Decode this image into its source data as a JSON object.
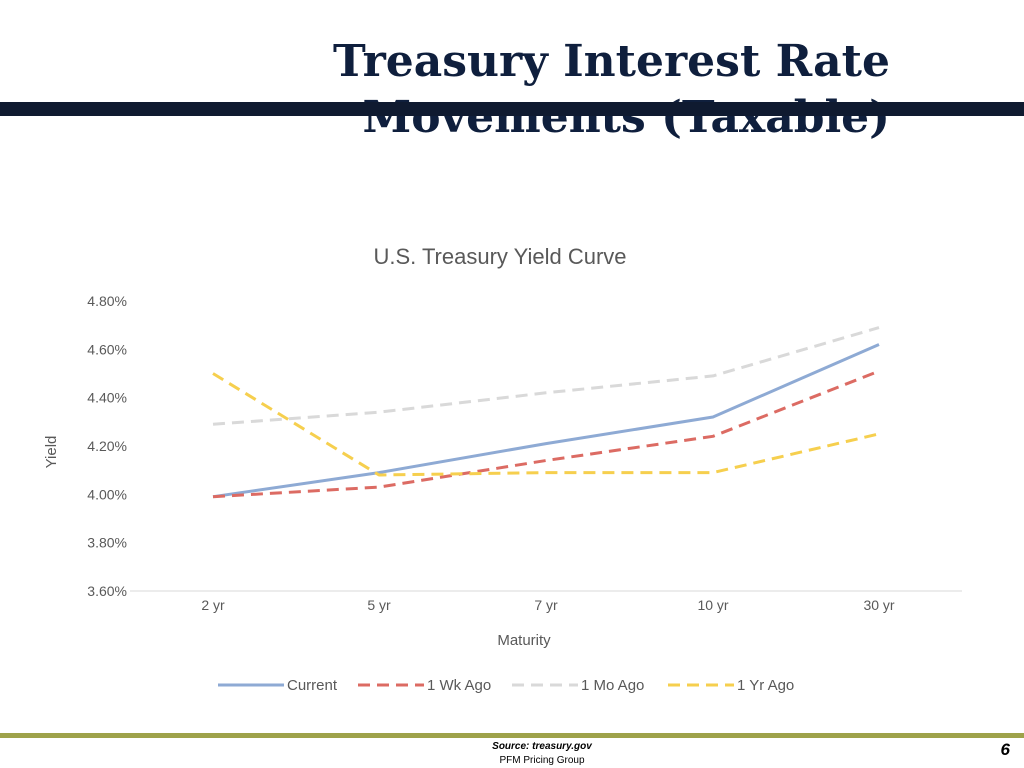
{
  "slide": {
    "title": "Treasury Interest Rate Movements (Taxable)",
    "footer_source": "Source: treasury.gov",
    "footer_org": "PFM Pricing Group",
    "page_number": "6"
  },
  "colors": {
    "title_text": "#0f1f3d",
    "title_bar": "#0f1a30",
    "footer_rule": "#9ea24a",
    "axis_text": "#595959",
    "gridline": "#d9d9d9"
  },
  "chart_data": {
    "type": "line",
    "title": "U.S. Treasury Yield Curve",
    "xlabel": "Maturity",
    "ylabel": "Yield",
    "categories": [
      "2 yr",
      "5 yr",
      "7 yr",
      "10 yr",
      "30 yr"
    ],
    "ylim": [
      3.6,
      4.8
    ],
    "yticks": [
      "4.80%",
      "4.60%",
      "4.40%",
      "4.20%",
      "4.00%",
      "3.80%",
      "3.60%"
    ],
    "grid": false,
    "legend_position": "bottom",
    "series": [
      {
        "name": "Current",
        "values": [
          3.99,
          4.09,
          4.21,
          4.32,
          4.62
        ],
        "color": "#8eaad4",
        "dash": "solid"
      },
      {
        "name": "1 Wk Ago",
        "values": [
          3.99,
          4.03,
          4.14,
          4.24,
          4.51
        ],
        "color": "#dc6b63",
        "dash": "dashed"
      },
      {
        "name": "1 Mo Ago",
        "values": [
          4.29,
          4.34,
          4.42,
          4.49,
          4.69
        ],
        "color": "#d9d9d9",
        "dash": "dashed"
      },
      {
        "name": "1 Yr Ago",
        "values": [
          4.5,
          4.08,
          4.09,
          4.09,
          4.25
        ],
        "color": "#f6cf4e",
        "dash": "dashed"
      }
    ]
  }
}
